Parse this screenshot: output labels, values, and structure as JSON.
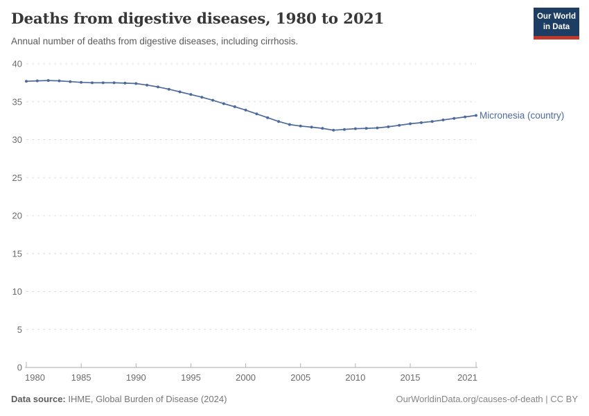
{
  "header": {
    "title": "Deaths from digestive diseases, 1980 to 2021",
    "subtitle": "Annual number of deaths from digestive diseases, including cirrhosis.",
    "logo": {
      "line1": "Our World",
      "line2": "in Data"
    }
  },
  "chart_data": {
    "type": "line",
    "title": "Deaths from digestive diseases, 1980 to 2021",
    "subtitle": "Annual number of deaths from digestive diseases, including cirrhosis.",
    "xlabel": "",
    "ylabel": "",
    "ylim": [
      0,
      40
    ],
    "yticks": [
      0,
      5,
      10,
      15,
      20,
      25,
      30,
      35,
      40
    ],
    "xticks": [
      1980,
      1985,
      1990,
      1995,
      2000,
      2005,
      2010,
      2015,
      2021
    ],
    "grid": "horizontal-dashed",
    "legend_position": "end-of-line-label",
    "x": [
      1980,
      1981,
      1982,
      1983,
      1984,
      1985,
      1986,
      1987,
      1988,
      1989,
      1990,
      1991,
      1992,
      1993,
      1994,
      1995,
      1996,
      1997,
      1998,
      1999,
      2000,
      2001,
      2002,
      2003,
      2004,
      2005,
      2006,
      2007,
      2008,
      2009,
      2010,
      2011,
      2012,
      2013,
      2014,
      2015,
      2016,
      2017,
      2018,
      2019,
      2020,
      2021
    ],
    "series": [
      {
        "name": "Micronesia (country)",
        "color": "#4c6a9c",
        "values": [
          37.7,
          37.75,
          37.8,
          37.75,
          37.65,
          37.55,
          37.5,
          37.5,
          37.5,
          37.45,
          37.4,
          37.2,
          36.95,
          36.65,
          36.3,
          35.95,
          35.6,
          35.2,
          34.75,
          34.35,
          33.9,
          33.4,
          32.9,
          32.4,
          32.0,
          31.8,
          31.65,
          31.5,
          31.25,
          31.35,
          31.45,
          31.5,
          31.55,
          31.7,
          31.9,
          32.1,
          32.25,
          32.4,
          32.6,
          32.8,
          33.0,
          33.2
        ]
      }
    ]
  },
  "colors": {
    "line": "#4c6a9c",
    "grid": "#dcdcdc",
    "axis": "#a8a8a8",
    "tick": "#b3b3b3",
    "tick_text": "#6b6b6b",
    "logo_bg": "#1d3d63",
    "logo_bar": "#c0392b"
  },
  "footer": {
    "source_label": "Data source:",
    "source_text": " IHME, Global Burden of Disease (2024)",
    "attribution": "OurWorldinData.org/causes-of-death | CC BY"
  }
}
